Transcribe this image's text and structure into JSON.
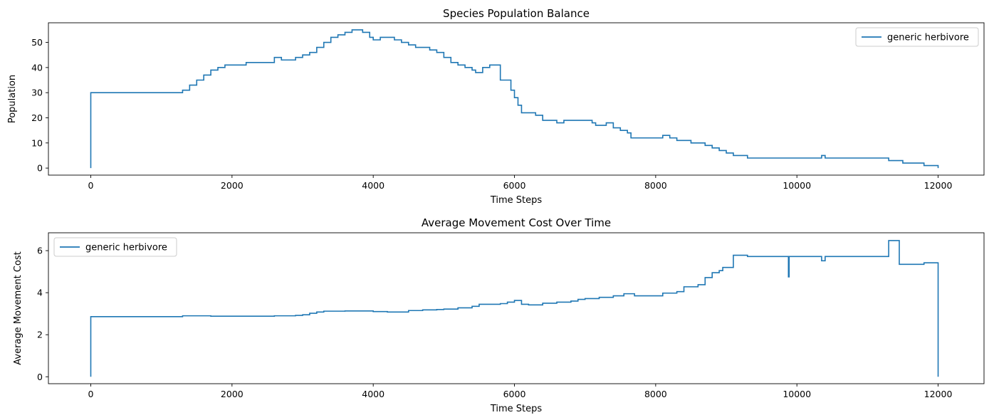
{
  "chart_data": [
    {
      "type": "line",
      "title": "Species Population Balance",
      "xlabel": "Time Steps",
      "ylabel": "Population",
      "xlim": [
        -600,
        12650
      ],
      "ylim": [
        -2.8,
        57.8
      ],
      "xticks": [
        0,
        2000,
        4000,
        6000,
        8000,
        10000,
        12000
      ],
      "xtick_labels": [
        "0",
        "2000",
        "4000",
        "6000",
        "8000",
        "10000",
        "12000"
      ],
      "yticks": [
        0,
        10,
        20,
        30,
        40,
        50
      ],
      "ytick_labels": [
        "0",
        "10",
        "20",
        "30",
        "40",
        "50"
      ],
      "legend_position": "top-right",
      "grid": false,
      "series": [
        {
          "name": "generic herbivore",
          "color": "#1f77b4",
          "step": true,
          "x": [
            0,
            0,
            1300,
            1400,
            1500,
            1600,
            1700,
            1800,
            1900,
            2200,
            2600,
            2700,
            2900,
            3000,
            3100,
            3200,
            3300,
            3400,
            3500,
            3600,
            3700,
            3850,
            3950,
            4000,
            4100,
            4300,
            4400,
            4500,
            4600,
            4700,
            4800,
            4900,
            5000,
            5100,
            5200,
            5300,
            5400,
            5450,
            5550,
            5650,
            5800,
            5900,
            5950,
            6000,
            6050,
            6100,
            6200,
            6300,
            6400,
            6600,
            6700,
            6950,
            7100,
            7150,
            7300,
            7400,
            7500,
            7600,
            7650,
            8100,
            8200,
            8300,
            8500,
            8700,
            8800,
            8900,
            9000,
            9100,
            9300,
            9900,
            10350,
            10400,
            11300,
            11400,
            11500,
            11800,
            12000
          ],
          "y": [
            0,
            30,
            31,
            33,
            35,
            37,
            39,
            40,
            41,
            42,
            44,
            43,
            44,
            45,
            46,
            48,
            50,
            52,
            53,
            54,
            55,
            54,
            52,
            51,
            52,
            51,
            50,
            49,
            48,
            48,
            47,
            46,
            44,
            42,
            41,
            40,
            39,
            38,
            40,
            41,
            35,
            35,
            31,
            28,
            25,
            22,
            22,
            21,
            19,
            18,
            19,
            19,
            18,
            17,
            18,
            16,
            15,
            14,
            12,
            13,
            12,
            11,
            10,
            9,
            8,
            7,
            6,
            5,
            4,
            4,
            5,
            4,
            3,
            3,
            2,
            1,
            0
          ]
        }
      ]
    },
    {
      "type": "line",
      "title": "Average Movement Cost Over Time",
      "xlabel": "Time Steps",
      "ylabel": "Average Movement Cost",
      "xlim": [
        -600,
        12650
      ],
      "ylim": [
        -0.33,
        6.85
      ],
      "xticks": [
        0,
        2000,
        4000,
        6000,
        8000,
        10000,
        12000
      ],
      "xtick_labels": [
        "0",
        "2000",
        "4000",
        "6000",
        "8000",
        "10000",
        "12000"
      ],
      "yticks": [
        0,
        2,
        4,
        6
      ],
      "ytick_labels": [
        "0",
        "2",
        "4",
        "6"
      ],
      "legend_position": "top-left",
      "grid": false,
      "series": [
        {
          "name": "generic herbivore",
          "color": "#1f77b4",
          "step": true,
          "x": [
            0,
            0,
            1300,
            1700,
            2600,
            2900,
            3000,
            3100,
            3200,
            3300,
            3600,
            4000,
            4200,
            4500,
            4700,
            4900,
            5000,
            5200,
            5400,
            5500,
            5800,
            5900,
            6000,
            6100,
            6200,
            6400,
            6600,
            6800,
            6900,
            7000,
            7200,
            7400,
            7550,
            7700,
            8100,
            8300,
            8400,
            8600,
            8700,
            8800,
            8900,
            8950,
            9100,
            9300,
            9880,
            9890,
            10350,
            10400,
            11300,
            11350,
            11450,
            11800,
            12000,
            12000
          ],
          "y": [
            0,
            2.86,
            2.9,
            2.88,
            2.9,
            2.92,
            2.95,
            3.02,
            3.08,
            3.12,
            3.13,
            3.1,
            3.08,
            3.15,
            3.18,
            3.2,
            3.22,
            3.28,
            3.35,
            3.45,
            3.48,
            3.55,
            3.63,
            3.45,
            3.42,
            3.5,
            3.55,
            3.6,
            3.68,
            3.72,
            3.78,
            3.85,
            3.95,
            3.85,
            3.98,
            4.05,
            4.28,
            4.38,
            4.72,
            4.95,
            5.05,
            5.2,
            5.78,
            5.72,
            4.75,
            5.72,
            5.52,
            5.72,
            6.48,
            6.48,
            5.35,
            5.42,
            5.42,
            0
          ]
        }
      ]
    }
  ]
}
